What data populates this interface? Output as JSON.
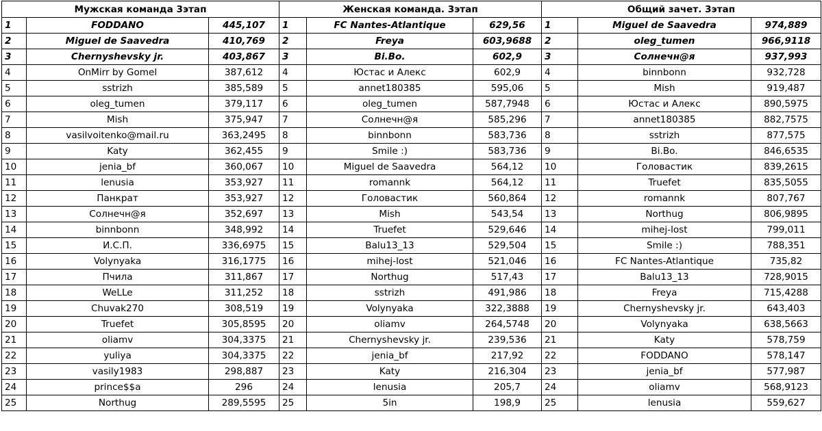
{
  "tables": [
    {
      "title": "Мужская команда 3этап",
      "rows": [
        [
          "1",
          "FODDANO",
          "445,107"
        ],
        [
          "2",
          "Miguel de Saavedra",
          "410,769"
        ],
        [
          "3",
          "Chernyshevsky jr.",
          "403,867"
        ],
        [
          "4",
          "OnMirr by Gomel",
          "387,612"
        ],
        [
          "5",
          "sstrizh",
          "385,589"
        ],
        [
          "6",
          "oleg_tumen",
          "379,117"
        ],
        [
          "7",
          "Mish",
          "375,947"
        ],
        [
          "8",
          "vasilvoitenko@mail.ru",
          "363,2495"
        ],
        [
          "9",
          "Katy",
          "362,455"
        ],
        [
          "10",
          "jenia_bf",
          "360,067"
        ],
        [
          "11",
          "lenusia",
          "353,927"
        ],
        [
          "12",
          "Панкрат",
          "353,927"
        ],
        [
          "13",
          "Солнечн@я",
          "352,697"
        ],
        [
          "14",
          "binnbonn",
          "348,992"
        ],
        [
          "15",
          "И.С.П.",
          "336,6975"
        ],
        [
          "16",
          "Volynyaka",
          "316,1775"
        ],
        [
          "17",
          "Пчила",
          "311,867"
        ],
        [
          "18",
          "WeLLe",
          "311,252"
        ],
        [
          "19",
          "Chuvak270",
          "308,519"
        ],
        [
          "20",
          "Truefet",
          "305,8595"
        ],
        [
          "21",
          "oliamv",
          "304,3375"
        ],
        [
          "22",
          "yuliya",
          "304,3375"
        ],
        [
          "23",
          "vasily1983",
          "298,887"
        ],
        [
          "24",
          "prince$$a",
          "296"
        ],
        [
          "25",
          "Northug",
          "289,5595"
        ]
      ]
    },
    {
      "title": "Женская  команда. 3этап",
      "rows": [
        [
          "1",
          "FC Nantes-Atlantique",
          "629,56"
        ],
        [
          "2",
          "Freya",
          "603,9688"
        ],
        [
          "3",
          "Bi.Bo.",
          "602,9"
        ],
        [
          "4",
          "Юстас и Алекс",
          "602,9"
        ],
        [
          "5",
          "annet180385",
          "595,06"
        ],
        [
          "6",
          "oleg_tumen",
          "587,7948"
        ],
        [
          "7",
          "Солнечн@я",
          "585,296"
        ],
        [
          "8",
          "binnbonn",
          "583,736"
        ],
        [
          "9",
          "Smile :)",
          "583,736"
        ],
        [
          "10",
          "Miguel de Saavedra",
          "564,12"
        ],
        [
          "11",
          "romannk",
          "564,12"
        ],
        [
          "12",
          "Головастик",
          "560,864"
        ],
        [
          "13",
          "Mish",
          "543,54"
        ],
        [
          "14",
          "Truefet",
          "529,646"
        ],
        [
          "15",
          "Balu13_13",
          "529,504"
        ],
        [
          "16",
          "mihej-lost",
          "521,046"
        ],
        [
          "17",
          "Northug",
          "517,43"
        ],
        [
          "18",
          "sstrizh",
          "491,986"
        ],
        [
          "19",
          "Volynyaka",
          "322,3888"
        ],
        [
          "20",
          "oliamv",
          "264,5748"
        ],
        [
          "21",
          "Chernyshevsky jr.",
          "239,536"
        ],
        [
          "22",
          "jenia_bf",
          "217,92"
        ],
        [
          "23",
          "Katy",
          "216,304"
        ],
        [
          "24",
          "lenusia",
          "205,7"
        ],
        [
          "25",
          "5in",
          "198,9"
        ]
      ]
    },
    {
      "title": "Общий зачет. 3этап",
      "rows": [
        [
          "1",
          "Miguel de Saavedra",
          "974,889"
        ],
        [
          "2",
          "oleg_tumen",
          "966,9118"
        ],
        [
          "3",
          "Солнечн@я",
          "937,993"
        ],
        [
          "4",
          "binnbonn",
          "932,728"
        ],
        [
          "5",
          "Mish",
          "919,487"
        ],
        [
          "6",
          "Юстас и Алекс",
          "890,5975"
        ],
        [
          "7",
          "annet180385",
          "882,7575"
        ],
        [
          "8",
          "sstrizh",
          "877,575"
        ],
        [
          "9",
          "Bi.Bo.",
          "846,6535"
        ],
        [
          "10",
          "Головастик",
          "839,2615"
        ],
        [
          "11",
          "Truefet",
          "835,5055"
        ],
        [
          "12",
          "romannk",
          "807,767"
        ],
        [
          "13",
          "Northug",
          "806,9895"
        ],
        [
          "14",
          "mihej-lost",
          "799,011"
        ],
        [
          "15",
          "Smile :)",
          "788,351"
        ],
        [
          "16",
          "FC Nantes-Atlantique",
          "735,82"
        ],
        [
          "17",
          "Balu13_13",
          "728,9015"
        ],
        [
          "18",
          "Freya",
          "715,4288"
        ],
        [
          "19",
          "Chernyshevsky jr.",
          "643,403"
        ],
        [
          "20",
          "Volynyaka",
          "638,5663"
        ],
        [
          "21",
          "Katy",
          "578,759"
        ],
        [
          "22",
          "FODDANO",
          "578,147"
        ],
        [
          "23",
          "jenia_bf",
          "577,987"
        ],
        [
          "24",
          "oliamv",
          "568,9123"
        ],
        [
          "25",
          "lenusia",
          "559,627"
        ]
      ]
    }
  ]
}
